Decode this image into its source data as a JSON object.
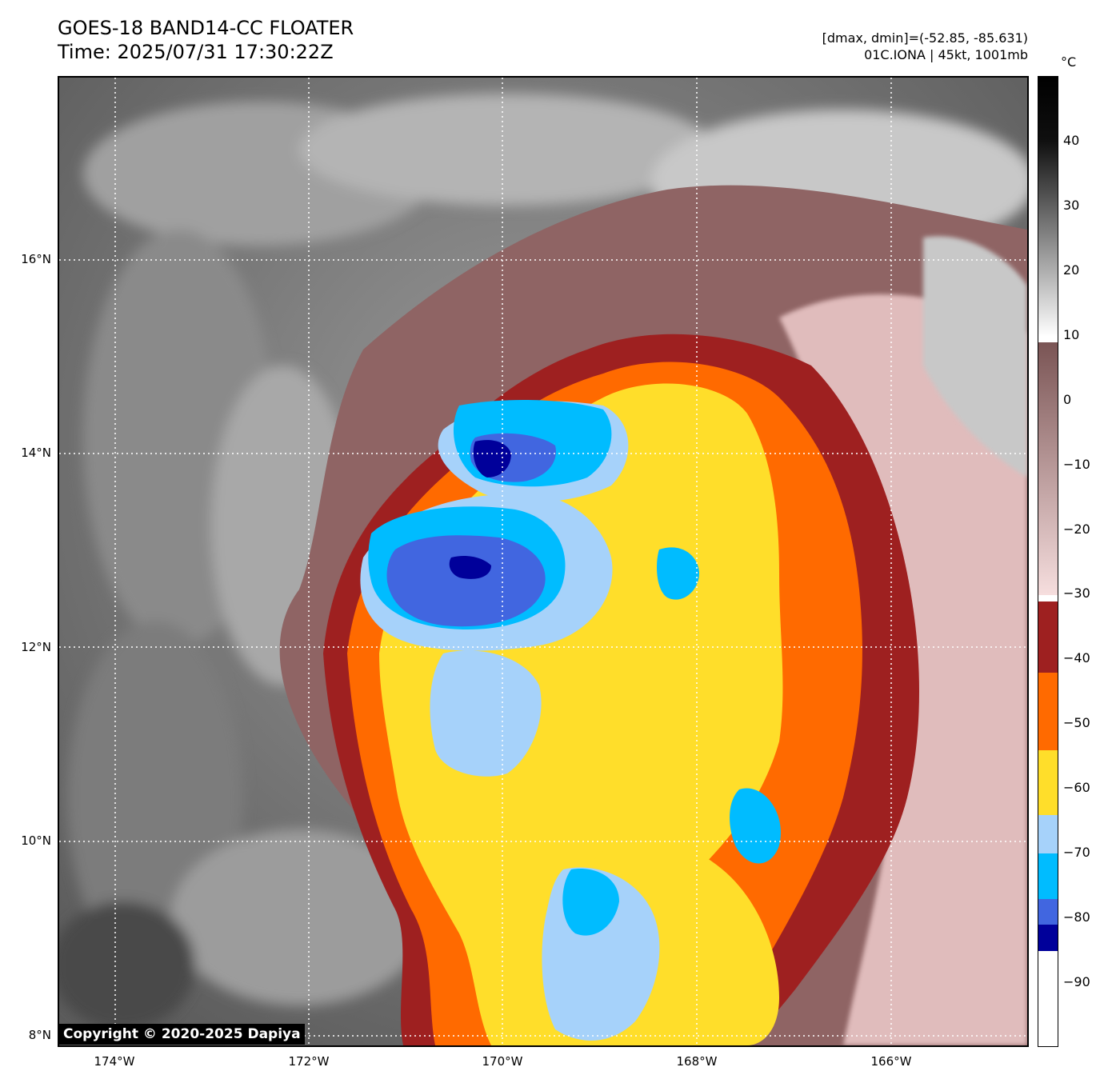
{
  "header": {
    "title_line1": "GOES-18 BAND14-CC FLOATER",
    "title_line2": "Time: 2025/07/31 17:30:22Z",
    "range_text": "[dmax, dmin]=(-52.85, -85.631)",
    "storm_text": "01C.IONA | 45kt, 1001mb"
  },
  "map": {
    "lat_labels": [
      "16°N",
      "14°N",
      "12°N",
      "10°N",
      "8°N"
    ],
    "lon_labels": [
      "174°W",
      "172°W",
      "170°W",
      "168°W",
      "166°W"
    ],
    "lat_values": [
      16,
      14,
      12,
      10,
      8
    ],
    "lon_values": [
      -174,
      -172,
      -170,
      -168,
      -166
    ],
    "extent": {
      "lon_min": -174.6,
      "lon_max": -164.6,
      "lat_min": 7.9,
      "lat_max": 17.9
    },
    "copyright": "Copyright © 2020-2025 Dapiya",
    "colors": {
      "background_gray": "#6a6a6a",
      "warm_brown": "#8f6464",
      "pink": "#e8c4c4",
      "dark_red": "#9e2020",
      "orange": "#ff6a00",
      "yellow": "#ffde2a",
      "light_blue": "#a6d2fa",
      "cyan": "#00bcff",
      "royal_blue": "#4166e0",
      "navy": "#00009a"
    }
  },
  "colorbar": {
    "unit": "°C",
    "ticks": [
      "40",
      "30",
      "20",
      "10",
      "0",
      "−10",
      "−20",
      "−30",
      "−40",
      "−50",
      "−60",
      "−70",
      "−80",
      "−90"
    ],
    "tick_values": [
      40,
      30,
      20,
      10,
      0,
      -10,
      -20,
      -30,
      -40,
      -50,
      -60,
      -70,
      -80,
      -90
    ],
    "range": [
      -100,
      50
    ],
    "segments": [
      {
        "from": 50,
        "to": 40,
        "colors": [
          "#000000",
          "#101010"
        ]
      },
      {
        "from": 40,
        "to": 10,
        "colors": [
          "#101010",
          "#ffffff"
        ]
      },
      {
        "from": 9,
        "to": -30,
        "colors": [
          "#7a5454",
          "#f6dede"
        ]
      },
      {
        "from": -31,
        "to": -42,
        "colors": [
          "#9e2020",
          "#9e2020"
        ]
      },
      {
        "from": -42,
        "to": -54,
        "colors": [
          "#ff6a00",
          "#ff6a00"
        ]
      },
      {
        "from": -54,
        "to": -64,
        "colors": [
          "#ffde2a",
          "#ffde2a"
        ]
      },
      {
        "from": -64,
        "to": -70,
        "colors": [
          "#a6d2fa",
          "#a6d2fa"
        ]
      },
      {
        "from": -70,
        "to": -77,
        "colors": [
          "#00bcff",
          "#00bcff"
        ]
      },
      {
        "from": -77,
        "to": -81,
        "colors": [
          "#4166e0",
          "#4166e0"
        ]
      },
      {
        "from": -81,
        "to": -85,
        "colors": [
          "#00009a",
          "#00009a"
        ]
      },
      {
        "from": -85,
        "to": -100,
        "colors": [
          "#ffffff",
          "#ffffff"
        ]
      }
    ]
  }
}
